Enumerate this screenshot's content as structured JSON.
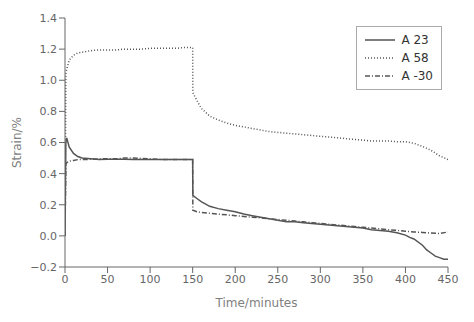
{
  "chart_data": {
    "type": "line",
    "xlabel": "Time/minutes",
    "ylabel": "Strain/%",
    "xlim": [
      0,
      450
    ],
    "ylim": [
      -0.2,
      1.4
    ],
    "xticks": [
      0,
      50,
      100,
      150,
      200,
      250,
      300,
      350,
      400,
      450
    ],
    "yticks": [
      {
        "value": -0.2,
        "label": "−0.2"
      },
      {
        "value": 0,
        "label": "0.0"
      },
      0.2,
      0.4,
      0.6,
      0.8,
      {
        "value": 1,
        "label": "1.0"
      },
      1.2,
      1.4
    ],
    "legend": "upper right",
    "series": [
      {
        "name": "A 23",
        "color": "#555555",
        "line_style": "solid",
        "x": [
          0,
          1,
          2,
          5,
          10,
          15,
          20,
          30,
          40,
          50,
          60,
          70,
          80,
          90,
          100,
          110,
          120,
          130,
          140,
          150,
          150.2,
          155,
          160,
          170,
          180,
          190,
          200,
          210,
          220,
          230,
          240,
          250,
          260,
          270,
          280,
          290,
          300,
          310,
          320,
          330,
          340,
          350,
          360,
          370,
          380,
          390,
          400,
          405,
          410,
          420,
          425,
          430,
          435,
          440,
          445,
          450
        ],
        "values": [
          0.0,
          0.6,
          0.63,
          0.57,
          0.53,
          0.51,
          0.5,
          0.495,
          0.49,
          0.492,
          0.492,
          0.492,
          0.49,
          0.49,
          0.49,
          0.49,
          0.49,
          0.49,
          0.49,
          0.49,
          0.26,
          0.24,
          0.22,
          0.19,
          0.175,
          0.165,
          0.155,
          0.14,
          0.13,
          0.12,
          0.11,
          0.1,
          0.09,
          0.09,
          0.085,
          0.08,
          0.075,
          0.07,
          0.065,
          0.06,
          0.055,
          0.05,
          0.04,
          0.035,
          0.03,
          0.02,
          0.005,
          -0.01,
          -0.02,
          -0.06,
          -0.09,
          -0.11,
          -0.13,
          -0.14,
          -0.15,
          -0.15
        ]
      },
      {
        "name": "A 58",
        "color": "#555555",
        "line_style": "dotted",
        "x": [
          0,
          1,
          2,
          5,
          10,
          15,
          20,
          25,
          30,
          40,
          50,
          60,
          70,
          80,
          90,
          100,
          110,
          120,
          130,
          140,
          150,
          150.2,
          155,
          160,
          170,
          180,
          190,
          200,
          210,
          220,
          230,
          240,
          250,
          260,
          270,
          280,
          290,
          300,
          310,
          320,
          330,
          340,
          350,
          360,
          370,
          380,
          390,
          400,
          410,
          420,
          430,
          440,
          450
        ],
        "values": [
          0.0,
          1.04,
          1.07,
          1.13,
          1.16,
          1.175,
          1.18,
          1.185,
          1.19,
          1.195,
          1.195,
          1.195,
          1.2,
          1.2,
          1.2,
          1.205,
          1.205,
          1.205,
          1.205,
          1.21,
          1.21,
          0.92,
          0.87,
          0.82,
          0.77,
          0.745,
          0.725,
          0.71,
          0.7,
          0.69,
          0.68,
          0.67,
          0.665,
          0.66,
          0.655,
          0.65,
          0.645,
          0.64,
          0.635,
          0.63,
          0.625,
          0.62,
          0.615,
          0.61,
          0.61,
          0.61,
          0.605,
          0.605,
          0.595,
          0.575,
          0.55,
          0.515,
          0.49
        ]
      },
      {
        "name": "A -30",
        "color": "#555555",
        "line_style": "dashdot",
        "x": [
          0,
          1,
          2,
          5,
          10,
          15,
          20,
          30,
          40,
          50,
          60,
          70,
          80,
          90,
          100,
          110,
          120,
          130,
          140,
          150,
          150.2,
          155,
          160,
          170,
          180,
          190,
          200,
          210,
          220,
          230,
          240,
          250,
          260,
          270,
          280,
          290,
          300,
          310,
          320,
          330,
          340,
          350,
          360,
          370,
          380,
          390,
          400,
          410,
          420,
          430,
          440,
          450
        ],
        "values": [
          0.0,
          0.46,
          0.47,
          0.48,
          0.485,
          0.49,
          0.49,
          0.492,
          0.495,
          0.495,
          0.495,
          0.5,
          0.5,
          0.498,
          0.495,
          0.492,
          0.49,
          0.49,
          0.49,
          0.49,
          0.165,
          0.155,
          0.15,
          0.145,
          0.14,
          0.135,
          0.13,
          0.125,
          0.12,
          0.115,
          0.11,
          0.105,
          0.1,
          0.095,
          0.09,
          0.085,
          0.08,
          0.075,
          0.07,
          0.065,
          0.06,
          0.055,
          0.05,
          0.045,
          0.04,
          0.035,
          0.03,
          0.025,
          0.022,
          0.018,
          0.015,
          0.025
        ]
      }
    ]
  }
}
